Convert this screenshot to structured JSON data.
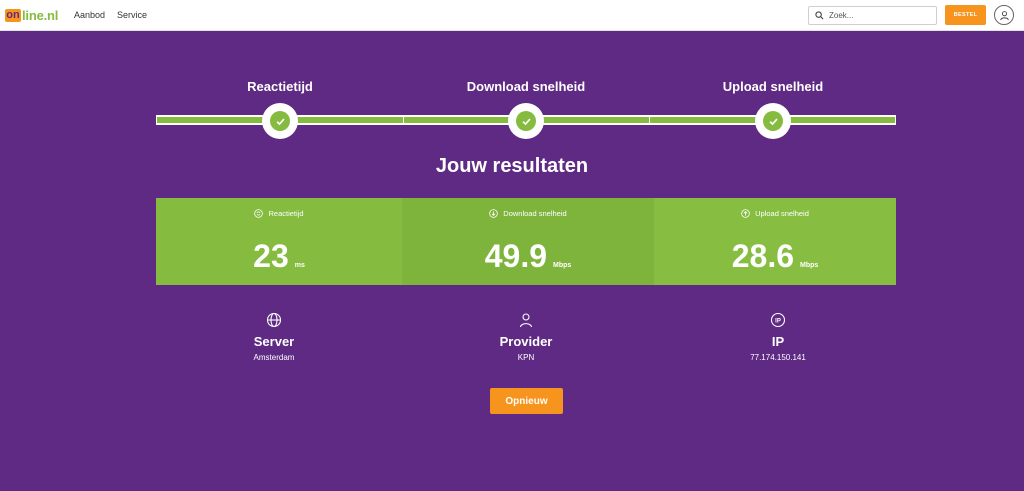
{
  "header": {
    "logo_mark": "on",
    "logo_text": "line.nl",
    "nav": [
      "Aanbod",
      "Service"
    ],
    "search_placeholder": "Zoek...",
    "order_label": "BESTEL"
  },
  "steps": [
    {
      "title": "Reactietijd",
      "status": "complete"
    },
    {
      "title": "Download snelheid",
      "status": "complete"
    },
    {
      "title": "Upload snelheid",
      "status": "complete"
    }
  ],
  "results_title": "Jouw resultaten",
  "results": [
    {
      "label": "Reactietijd",
      "value": "23",
      "unit": "ms"
    },
    {
      "label": "Download snelheid",
      "value": "49.9",
      "unit": "Mbps"
    },
    {
      "label": "Upload snelheid",
      "value": "28.6",
      "unit": "Mbps"
    }
  ],
  "info": [
    {
      "title": "Server",
      "value": "Amsterdam",
      "icon": "globe-icon"
    },
    {
      "title": "Provider",
      "value": "KPN",
      "icon": "user-icon"
    },
    {
      "title": "IP",
      "value": "77.174.150.141",
      "icon": "ip-icon"
    }
  ],
  "retry_label": "Opnieuw",
  "colors": {
    "background": "#5f2a83",
    "accent_green": "#85bc3f",
    "accent_orange": "#f7941d"
  }
}
